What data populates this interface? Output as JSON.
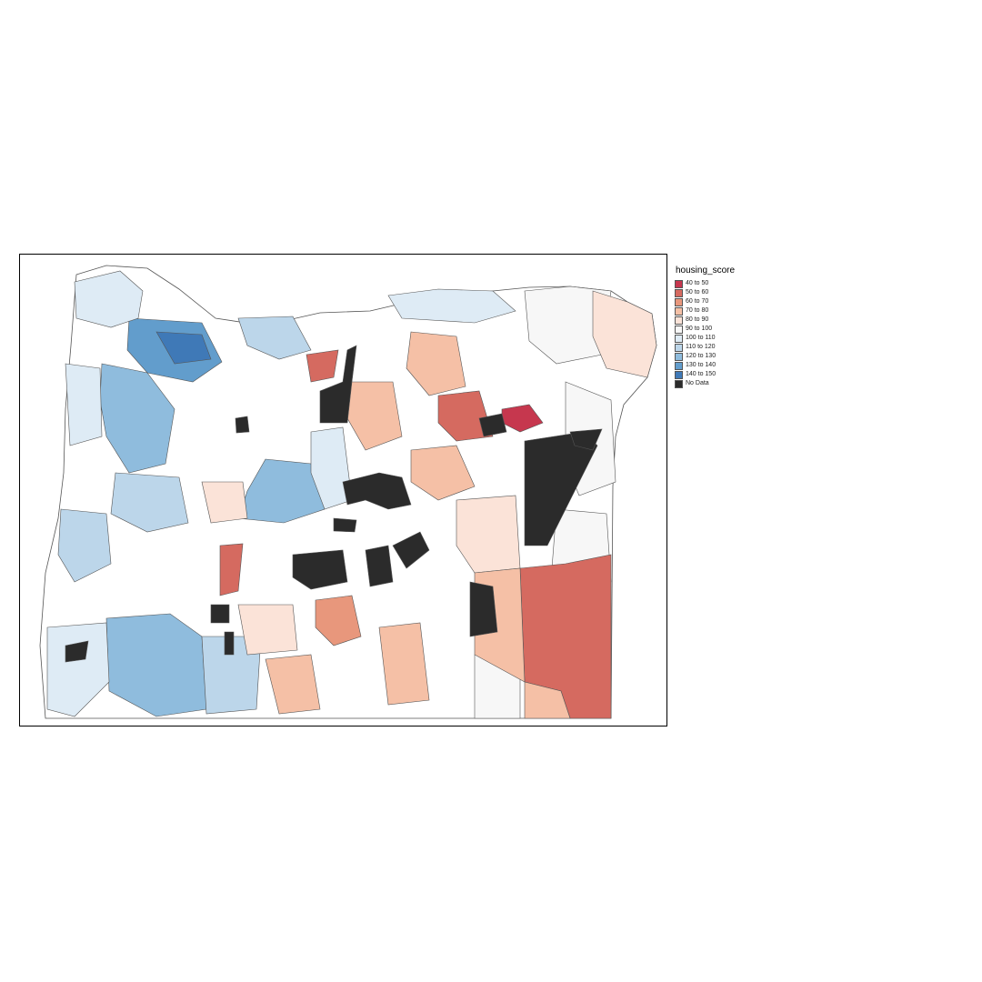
{
  "legend": {
    "title": "housing_score",
    "items": [
      {
        "label": "40 to 50",
        "color": "#c6374e"
      },
      {
        "label": "50 to 60",
        "color": "#d56a60"
      },
      {
        "label": "60 to 70",
        "color": "#e8977c"
      },
      {
        "label": "70 to 80",
        "color": "#f5c0a6"
      },
      {
        "label": "80 to 90",
        "color": "#fbe3d8"
      },
      {
        "label": "90 to 100",
        "color": "#f7f7f7"
      },
      {
        "label": "100 to 110",
        "color": "#deebf5"
      },
      {
        "label": "110 to 120",
        "color": "#bcd6ea"
      },
      {
        "label": "120 to 130",
        "color": "#8fbcdd"
      },
      {
        "label": "130 to 140",
        "color": "#629dcc"
      },
      {
        "label": "140 to 150",
        "color": "#3f79b7"
      },
      {
        "label": "No Data",
        "color": "#2b2b2b"
      }
    ]
  }
}
